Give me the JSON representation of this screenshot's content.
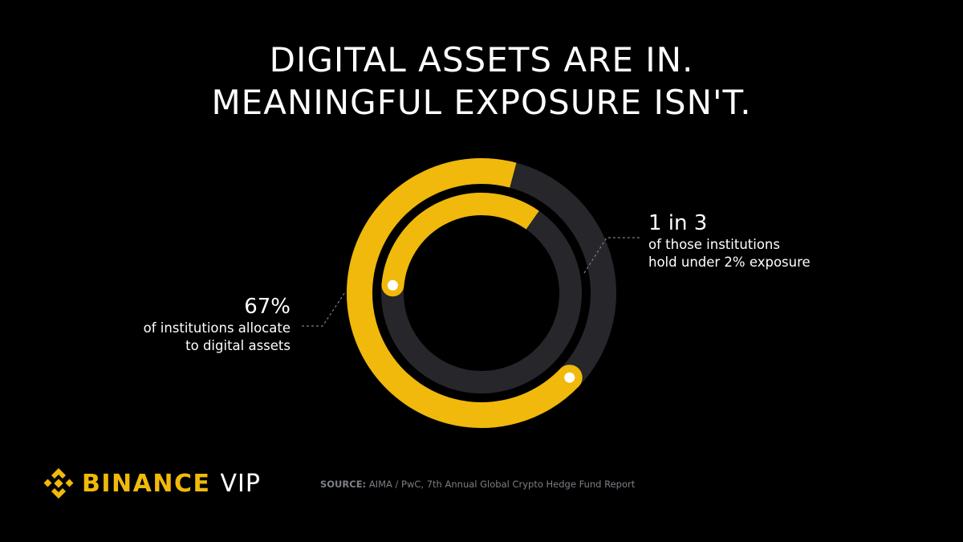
{
  "headline": {
    "line1": "DIGITAL ASSETS ARE IN.",
    "line2": "MEANINGFUL EXPOSURE ISN'T."
  },
  "chart_data": {
    "type": "radial-bar",
    "title": "DIGITAL ASSETS ARE IN. MEANINGFUL EXPOSURE ISN'T.",
    "series": [
      {
        "name": "of institutions allocate to digital assets",
        "value_label": "67%",
        "value": 0.67,
        "ring": "outer"
      },
      {
        "name": "of those institutions hold under 2% exposure",
        "value_label": "1 in 3",
        "value": 0.3333,
        "ring": "inner"
      }
    ],
    "colors": {
      "filled": "#f0b90b",
      "track": "#26262b",
      "endpoint": "#ffffff",
      "leader": "#7b7f86"
    }
  },
  "callouts": {
    "left": {
      "value": "67%",
      "line1": "of institutions allocate",
      "line2": "to digital assets"
    },
    "right": {
      "value": "1 in 3",
      "line1": "of those institutions",
      "line2": "hold under 2% exposure"
    }
  },
  "brand": {
    "icon": "binance-diamond-icon",
    "name": "BINANCE",
    "suffix": "VIP",
    "color": "#f0b90b"
  },
  "source": {
    "label": "SOURCE:",
    "text": "AIMA / PwC, 7th Annual Global Crypto Hedge Fund Report"
  }
}
